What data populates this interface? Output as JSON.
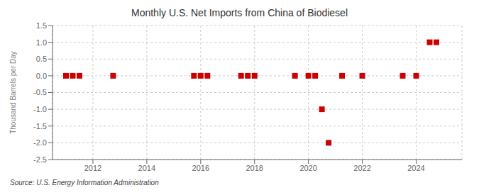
{
  "chart_data": {
    "type": "scatter",
    "title": "Monthly U.S. Net Imports from China of Biodiesel",
    "y_label": "Thousand Barrels per Day",
    "annotation": "Source: U.S. Energy Information Administration",
    "x": [
      2011.0,
      2011.25,
      2011.5,
      2012.75,
      2015.75,
      2016.0,
      2016.25,
      2017.5,
      2017.75,
      2018.0,
      2019.5,
      2020.0,
      2020.25,
      2020.5,
      2020.75,
      2021.25,
      2022.0,
      2023.5,
      2024.0,
      2024.5,
      2024.75
    ],
    "values": [
      0.0,
      0.0,
      0.0,
      0.0,
      0.0,
      0.0,
      0.0,
      0.0,
      0.0,
      0.0,
      0.0,
      0.0,
      0.0,
      -1.0,
      -2.0,
      0.0,
      0.0,
      0.0,
      0.0,
      1.0,
      1.0
    ],
    "color": "#cc0000",
    "marker": "square",
    "xlim": [
      2010.5,
      2025.7
    ],
    "xticks": [
      2012,
      2014,
      2016,
      2018,
      2020,
      2022,
      2024
    ],
    "ylim": [
      -2.5,
      1.5
    ],
    "yticks": [
      -2.5,
      {
        "value": -2,
        "label": "-2.0"
      },
      -1.5,
      {
        "value": -1,
        "label": "-1.0"
      },
      -0.5,
      {
        "value": 0,
        "label": "0.0"
      },
      0.5,
      {
        "value": 1,
        "label": "1.0"
      },
      1.5
    ],
    "grid": true
  }
}
